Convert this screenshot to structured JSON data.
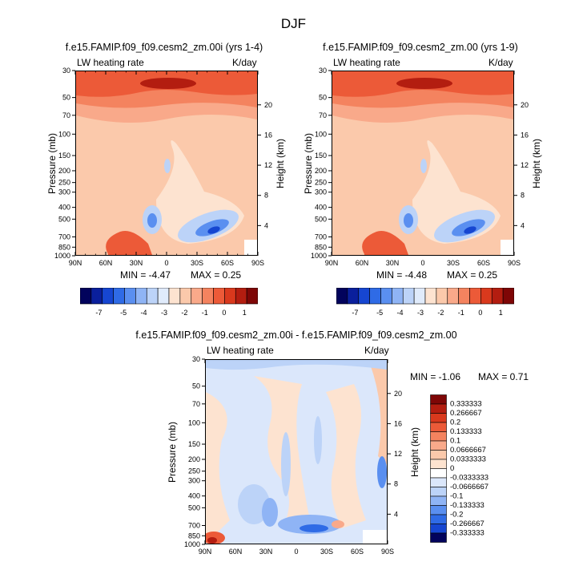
{
  "figure": {
    "title": "DJF"
  },
  "panels": [
    {
      "title": "f.e15.FAMIP.f09_f09.cesm2_zm.00i (yrs 1-4)",
      "left_label": "LW heating rate",
      "right_label": "K/day",
      "ylabel": "Pressure (mb)",
      "ylabel_right": "Height (km)",
      "min_text": "MIN =  -4.47",
      "max_text": "MAX =   0.25",
      "colorbar_labels": [
        "-7",
        "-5",
        "-4",
        "-3",
        "-2",
        "-1",
        "0",
        "1"
      ]
    },
    {
      "title": "f.e15.FAMIP.f09_f09.cesm2_zm.00 (yrs 1-9)",
      "left_label": "LW heating rate",
      "right_label": "K/day",
      "ylabel": "Pressure (mb)",
      "ylabel_right": "Height (km)",
      "min_text": "MIN =  -4.48",
      "max_text": "MAX =   0.25",
      "colorbar_labels": [
        "-7",
        "-5",
        "-4",
        "-3",
        "-2",
        "-1",
        "0",
        "1"
      ]
    },
    {
      "title": "f.e15.FAMIP.f09_f09.cesm2_zm.00i - f.e15.FAMIP.f09_f09.cesm2_zm.00",
      "left_label": "LW heating rate",
      "right_label": "K/day",
      "ylabel": "Pressure (mb)",
      "ylabel_right": "Height (km)",
      "min_text": "MIN =  -1.06",
      "max_text": "MAX =   0.71",
      "colorbar_labels": [
        "0.333333",
        "0.266667",
        "0.2",
        "0.133333",
        "0.1",
        "0.0666667",
        "0.0333333",
        "0",
        "-0.0333333",
        "-0.0666667",
        "-0.1",
        "-0.133333",
        "-0.2",
        "-0.266667",
        "-0.333333"
      ]
    }
  ],
  "chart_data": [
    {
      "type": "heatmap",
      "title": "f.e15.FAMIP.f09_f09.cesm2_zm.00i (yrs 1-4)",
      "xlabel": "",
      "ylabel": "Pressure (mb)",
      "x_ticks": [
        "90N",
        "60N",
        "30N",
        "0",
        "30S",
        "60S",
        "90S"
      ],
      "y_ticks": [
        30,
        50,
        70,
        100,
        150,
        200,
        250,
        300,
        400,
        500,
        700,
        850,
        1000
      ],
      "y2_ticks": [
        20,
        16,
        12,
        8,
        4
      ],
      "ylim": [
        1000,
        30
      ],
      "min": -4.47,
      "max": 0.25,
      "levels": [
        -7,
        -6,
        -5,
        -4.5,
        -4,
        -3.5,
        -3,
        -2.5,
        -2,
        -1.5,
        -1,
        -0.5,
        0,
        0.5,
        1,
        1.5
      ],
      "colors": [
        "#02035c",
        "#0a1f9c",
        "#1646d1",
        "#2f6be6",
        "#5a8ff0",
        "#8fb4f5",
        "#bcd3f8",
        "#e0ebfb",
        "#fde3d0",
        "#fbc9ab",
        "#f9a98a",
        "#f4835f",
        "#ec5a38",
        "#d9391d",
        "#b31d10",
        "#7e0606"
      ]
    },
    {
      "type": "heatmap",
      "title": "f.e15.FAMIP.f09_f09.cesm2_zm.00 (yrs 1-9)",
      "xlabel": "",
      "ylabel": "Pressure (mb)",
      "x_ticks": [
        "90N",
        "60N",
        "30N",
        "0",
        "30S",
        "60S",
        "90S"
      ],
      "y_ticks": [
        30,
        50,
        70,
        100,
        150,
        200,
        250,
        300,
        400,
        500,
        700,
        850,
        1000
      ],
      "y2_ticks": [
        20,
        16,
        12,
        8,
        4
      ],
      "ylim": [
        1000,
        30
      ],
      "min": -4.48,
      "max": 0.25,
      "levels": [
        -7,
        -6,
        -5,
        -4.5,
        -4,
        -3.5,
        -3,
        -2.5,
        -2,
        -1.5,
        -1,
        -0.5,
        0,
        0.5,
        1,
        1.5
      ],
      "colors": [
        "#02035c",
        "#0a1f9c",
        "#1646d1",
        "#2f6be6",
        "#5a8ff0",
        "#8fb4f5",
        "#bcd3f8",
        "#e0ebfb",
        "#fde3d0",
        "#fbc9ab",
        "#f9a98a",
        "#f4835f",
        "#ec5a38",
        "#d9391d",
        "#b31d10",
        "#7e0606"
      ]
    },
    {
      "type": "heatmap",
      "title": "f.e15.FAMIP.f09_f09.cesm2_zm.00i - f.e15.FAMIP.f09_f09.cesm2_zm.00",
      "xlabel": "",
      "ylabel": "Pressure (mb)",
      "x_ticks": [
        "90N",
        "60N",
        "30N",
        "0",
        "30S",
        "60S",
        "90S"
      ],
      "y_ticks": [
        30,
        50,
        70,
        100,
        150,
        200,
        250,
        300,
        400,
        500,
        700,
        850,
        1000
      ],
      "y2_ticks": [
        20,
        16,
        12,
        8,
        4
      ],
      "ylim": [
        1000,
        30
      ],
      "min": -1.06,
      "max": 0.71,
      "levels": [
        0.333333,
        0.266667,
        0.2,
        0.133333,
        0.1,
        0.0666667,
        0.0333333,
        0,
        -0.0333333,
        -0.0666667,
        -0.1,
        -0.133333,
        -0.2,
        -0.266667,
        -0.333333
      ],
      "colors": [
        "#7e0606",
        "#b31d10",
        "#d9391d",
        "#ec5a38",
        "#f4835f",
        "#f9a98a",
        "#fbc9ab",
        "#fde3d0",
        "#ffffff",
        "#dbe7fb",
        "#bcd3f8",
        "#8fb4f5",
        "#5a8ff0",
        "#2f6be6",
        "#1646d1",
        "#02035c"
      ]
    }
  ]
}
